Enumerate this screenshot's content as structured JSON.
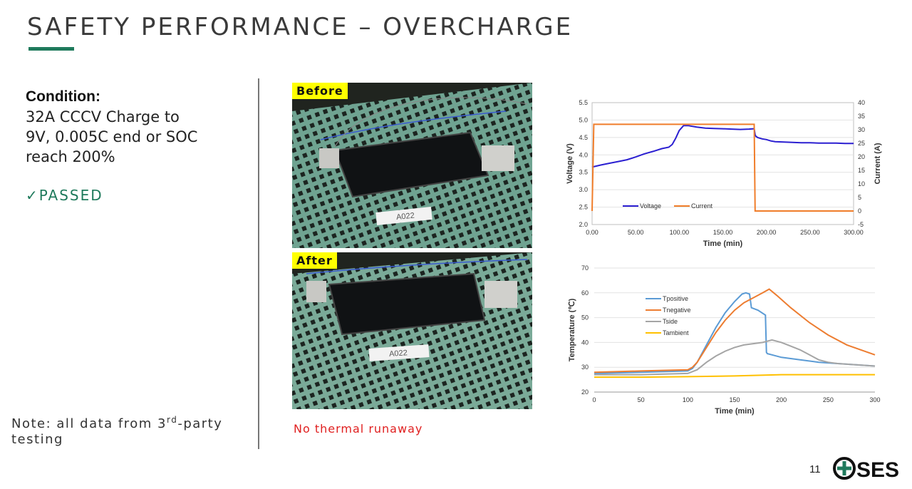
{
  "slide": {
    "title": "SAFETY PERFORMANCE – OVERCHARGE",
    "page_number": "11",
    "logo_text": "SES",
    "accent_color": "#1f7a5c"
  },
  "condition": {
    "heading": "Condition:",
    "lines": [
      "32A CCCV Charge to",
      "9V, 0.005C end or SOC",
      "reach 200%"
    ],
    "result": "✓PASSED"
  },
  "note": {
    "line1_prefix": "Note: all data from 3",
    "line1_sup": "rd",
    "line1_suffix": "-party",
    "line2": "testing"
  },
  "photos": {
    "before_label": "Before",
    "after_label": "After",
    "cell_tag": "A022",
    "caption": "No thermal runaway",
    "caption_color": "#e02020"
  },
  "chart_data": [
    {
      "type": "line",
      "xlabel": "Time (min)",
      "ylabel": "Voltage (V)",
      "y2label": "Current (A)",
      "xlim": [
        0,
        300
      ],
      "ylim": [
        2.0,
        5.5
      ],
      "y2lim": [
        -5,
        40
      ],
      "x_ticks": [
        "0.00",
        "50.00",
        "100.00",
        "150.00",
        "200.00",
        "250.00",
        "300.00"
      ],
      "y_ticks": [
        "2.0",
        "2.5",
        "3.0",
        "3.5",
        "4.0",
        "4.5",
        "5.0",
        "5.5"
      ],
      "y2_ticks": [
        "-5",
        "0",
        "5",
        "10",
        "15",
        "20",
        "25",
        "30",
        "35",
        "40"
      ],
      "grid": "horizontal",
      "legend_position": "lower-left",
      "series": [
        {
          "name": "Voltage",
          "axis": "left",
          "color": "#2b1fd1",
          "x": [
            0,
            10,
            20,
            30,
            40,
            50,
            60,
            70,
            80,
            88,
            92,
            96,
            100,
            105,
            110,
            120,
            130,
            140,
            150,
            160,
            170,
            180,
            186,
            187,
            188,
            190,
            195,
            200,
            205,
            210,
            220,
            230,
            240,
            250,
            260,
            270,
            280,
            290,
            300
          ],
          "y": [
            3.65,
            3.71,
            3.76,
            3.81,
            3.86,
            3.94,
            4.03,
            4.1,
            4.18,
            4.22,
            4.3,
            4.48,
            4.7,
            4.84,
            4.84,
            4.8,
            4.77,
            4.76,
            4.75,
            4.74,
            4.73,
            4.74,
            4.75,
            4.58,
            4.53,
            4.5,
            4.46,
            4.44,
            4.4,
            4.38,
            4.37,
            4.36,
            4.35,
            4.35,
            4.34,
            4.34,
            4.34,
            4.33,
            4.33
          ]
        },
        {
          "name": "Current",
          "axis": "right",
          "color": "#f07d2a",
          "x": [
            0,
            2,
            186,
            187,
            300
          ],
          "y": [
            0,
            32,
            32,
            0,
            0
          ]
        }
      ]
    },
    {
      "type": "line",
      "xlabel": "Time (min)",
      "ylabel": "Temperature (℃)",
      "xlim": [
        0,
        300
      ],
      "ylim": [
        20,
        70
      ],
      "x_ticks": [
        "0",
        "50",
        "100",
        "150",
        "200",
        "250",
        "300"
      ],
      "y_ticks": [
        "20",
        "30",
        "40",
        "50",
        "60",
        "70"
      ],
      "grid": "horizontal",
      "legend_position": "upper-left",
      "series": [
        {
          "name": "Tpositive",
          "color": "#5b9bd5",
          "x": [
            0,
            50,
            100,
            105,
            110,
            120,
            130,
            140,
            150,
            158,
            162,
            166,
            168,
            175,
            183,
            184,
            185,
            190,
            200,
            210,
            220,
            240,
            260,
            280,
            300
          ],
          "y": [
            27.5,
            28,
            28.5,
            29.5,
            32,
            39,
            46,
            52,
            56.5,
            59.5,
            60,
            59.5,
            54,
            53,
            51,
            36,
            35.5,
            35,
            34,
            33.5,
            33,
            32,
            31.5,
            31,
            30.5
          ]
        },
        {
          "name": "Tnegative",
          "color": "#ed7d31",
          "x": [
            0,
            50,
            100,
            105,
            110,
            120,
            130,
            140,
            150,
            160,
            170,
            180,
            187,
            195,
            210,
            230,
            250,
            270,
            300
          ],
          "y": [
            28,
            28.5,
            29,
            30,
            32,
            38,
            44,
            49,
            53,
            56,
            58,
            60,
            61.5,
            59,
            54,
            48,
            43,
            39,
            35
          ]
        },
        {
          "name": "Tside",
          "color": "#a5a5a5",
          "x": [
            0,
            50,
            100,
            110,
            120,
            130,
            140,
            150,
            160,
            170,
            180,
            190,
            200,
            210,
            220,
            230,
            240,
            250,
            260,
            280,
            300
          ],
          "y": [
            27,
            27,
            27.5,
            29,
            32,
            34.5,
            36.5,
            38,
            39,
            39.5,
            40,
            41,
            40,
            38.5,
            37,
            35,
            33,
            32,
            31.5,
            31,
            30.5
          ]
        },
        {
          "name": "Tambient",
          "color": "#ffc000",
          "x": [
            0,
            50,
            100,
            150,
            200,
            250,
            300
          ],
          "y": [
            26,
            26,
            26.2,
            26.5,
            27,
            27,
            27
          ]
        }
      ]
    }
  ]
}
